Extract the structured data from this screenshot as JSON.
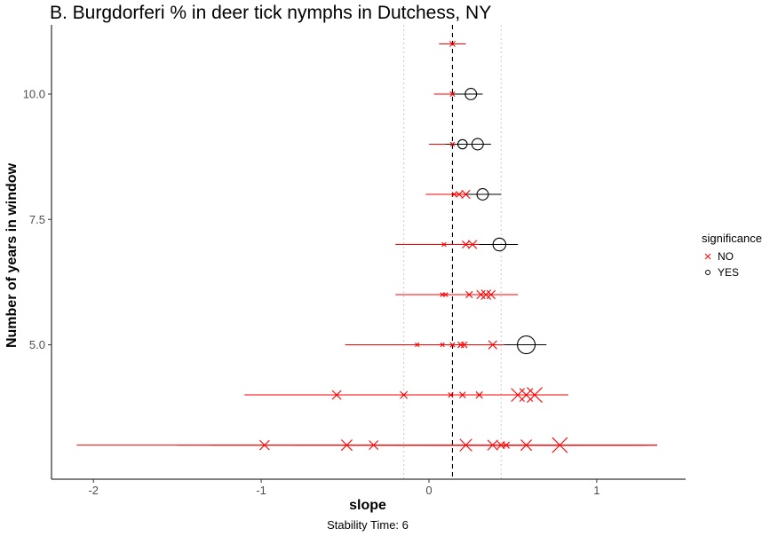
{
  "chart_data": {
    "type": "scatter",
    "title": "B. Burgdorferi % in deer tick nymphs in Dutchess, NY",
    "xlabel": "slope",
    "ylabel": "Number of years in window",
    "caption": "Stability Time: 6",
    "xlim": [
      -2.25,
      1.53
    ],
    "ylim": [
      2.32,
      11.38
    ],
    "x_ticks": [
      {
        "value": -2,
        "label": "-2"
      },
      {
        "value": -1,
        "label": "-1"
      },
      {
        "value": 0,
        "label": "0"
      },
      {
        "value": 1,
        "label": "1"
      }
    ],
    "y_ticks": [
      {
        "value": 5,
        "label": "5.0"
      },
      {
        "value": 7.5,
        "label": "7.5"
      },
      {
        "value": 10,
        "label": "10.0"
      }
    ],
    "reference_lines": {
      "mean_slope": 0.14,
      "lower_dotted": -0.15,
      "upper_dotted": 0.43
    },
    "grid": false,
    "legend": {
      "title": "significance",
      "placement": "right",
      "entries": [
        {
          "label": "NO",
          "marker": "x",
          "color": "#ff0000"
        },
        {
          "label": "YES",
          "marker": "circle",
          "color": "#000000"
        }
      ]
    },
    "colors": {
      "NO": "#ff0000",
      "YES": "#000000"
    },
    "series": [
      {
        "name": "NO",
        "points": [
          {
            "years": 11,
            "slope": 0.14,
            "lo": 0.06,
            "hi": 0.22,
            "size": 0.2
          },
          {
            "years": 10,
            "slope": 0.14,
            "lo": 0.03,
            "hi": 0.28,
            "size": 0.15
          },
          {
            "years": 9,
            "slope": 0.14,
            "lo": 0.0,
            "hi": 0.3,
            "size": 0.1
          },
          {
            "years": 8,
            "slope": 0.15,
            "lo": -0.02,
            "hi": 0.31,
            "size": 0.1
          },
          {
            "years": 8,
            "slope": 0.18,
            "lo": 0.0,
            "hi": 0.35,
            "size": 0.25
          },
          {
            "years": 8,
            "slope": 0.22,
            "lo": 0.02,
            "hi": 0.4,
            "size": 0.45
          },
          {
            "years": 7,
            "slope": 0.09,
            "lo": -0.2,
            "hi": 0.3,
            "size": 0.1
          },
          {
            "years": 7,
            "slope": 0.22,
            "lo": -0.05,
            "hi": 0.45,
            "size": 0.35
          },
          {
            "years": 7,
            "slope": 0.26,
            "lo": 0.0,
            "hi": 0.5,
            "size": 0.45
          },
          {
            "years": 6,
            "slope": 0.08,
            "lo": -0.2,
            "hi": 0.3,
            "size": 0.1
          },
          {
            "years": 6,
            "slope": 0.1,
            "lo": -0.15,
            "hi": 0.35,
            "size": 0.1
          },
          {
            "years": 6,
            "slope": 0.24,
            "lo": -0.05,
            "hi": 0.45,
            "size": 0.3
          },
          {
            "years": 6,
            "slope": 0.31,
            "lo": 0.0,
            "hi": 0.5,
            "size": 0.45
          },
          {
            "years": 6,
            "slope": 0.34,
            "lo": 0.05,
            "hi": 0.53,
            "size": 0.55
          },
          {
            "years": 6,
            "slope": 0.37,
            "lo": 0.1,
            "hi": 0.53,
            "size": 0.45
          },
          {
            "years": 5,
            "slope": -0.07,
            "lo": -0.5,
            "hi": 0.4,
            "size": 0.08
          },
          {
            "years": 5,
            "slope": 0.08,
            "lo": -0.3,
            "hi": 0.45,
            "size": 0.08
          },
          {
            "years": 5,
            "slope": 0.14,
            "lo": -0.2,
            "hi": 0.5,
            "size": 0.15
          },
          {
            "years": 5,
            "slope": 0.19,
            "lo": -0.1,
            "hi": 0.5,
            "size": 0.25
          },
          {
            "years": 5,
            "slope": 0.21,
            "lo": -0.1,
            "hi": 0.55,
            "size": 0.25
          },
          {
            "years": 5,
            "slope": 0.38,
            "lo": 0.0,
            "hi": 0.7,
            "size": 0.45
          },
          {
            "years": 4,
            "slope": -0.55,
            "lo": -1.1,
            "hi": 0.3,
            "size": 0.5
          },
          {
            "years": 4,
            "slope": -0.15,
            "lo": -0.8,
            "hi": 0.5,
            "size": 0.35
          },
          {
            "years": 4,
            "slope": 0.13,
            "lo": -0.5,
            "hi": 0.6,
            "size": 0.15
          },
          {
            "years": 4,
            "slope": 0.2,
            "lo": -0.4,
            "hi": 0.7,
            "size": 0.25
          },
          {
            "years": 4,
            "slope": 0.3,
            "lo": -0.3,
            "hi": 0.8,
            "size": 0.3
          },
          {
            "years": 4,
            "slope": 0.53,
            "lo": 0.0,
            "hi": 0.83,
            "size": 0.85
          },
          {
            "years": 4,
            "slope": 0.58,
            "lo": 0.1,
            "hi": 0.83,
            "size": 0.85
          },
          {
            "years": 4,
            "slope": 0.63,
            "lo": 0.2,
            "hi": 0.83,
            "size": 1.0
          },
          {
            "years": 3,
            "slope": -0.98,
            "lo": -2.1,
            "hi": 0.5,
            "size": 0.55
          },
          {
            "years": 3,
            "slope": -0.49,
            "lo": -1.5,
            "hi": 0.8,
            "size": 0.65
          },
          {
            "years": 3,
            "slope": -0.33,
            "lo": -1.3,
            "hi": 0.9,
            "size": 0.5
          },
          {
            "years": 3,
            "slope": 0.22,
            "lo": -0.8,
            "hi": 1.2,
            "size": 0.75
          },
          {
            "years": 3,
            "slope": 0.38,
            "lo": -0.5,
            "hi": 1.3,
            "size": 0.6
          },
          {
            "years": 3,
            "slope": 0.43,
            "lo": -0.3,
            "hi": 1.3,
            "size": 0.35
          },
          {
            "years": 3,
            "slope": 0.46,
            "lo": -0.2,
            "hi": 1.36,
            "size": 0.3
          },
          {
            "years": 3,
            "slope": 0.58,
            "lo": 0.0,
            "hi": 1.36,
            "size": 0.65
          },
          {
            "years": 3,
            "slope": 0.78,
            "lo": 0.2,
            "hi": 1.36,
            "size": 1.0
          }
        ]
      },
      {
        "name": "YES",
        "points": [
          {
            "years": 10,
            "slope": 0.25,
            "lo": 0.14,
            "hi": 0.32,
            "size": 0.55
          },
          {
            "years": 9,
            "slope": 0.2,
            "lo": 0.1,
            "hi": 0.3,
            "size": 0.4
          },
          {
            "years": 9,
            "slope": 0.29,
            "lo": 0.18,
            "hi": 0.37,
            "size": 0.55
          },
          {
            "years": 8,
            "slope": 0.32,
            "lo": 0.22,
            "hi": 0.43,
            "size": 0.55
          },
          {
            "years": 7,
            "slope": 0.42,
            "lo": 0.3,
            "hi": 0.53,
            "size": 0.65
          },
          {
            "years": 5,
            "slope": 0.58,
            "lo": 0.45,
            "hi": 0.7,
            "size": 1.0
          }
        ]
      }
    ]
  }
}
